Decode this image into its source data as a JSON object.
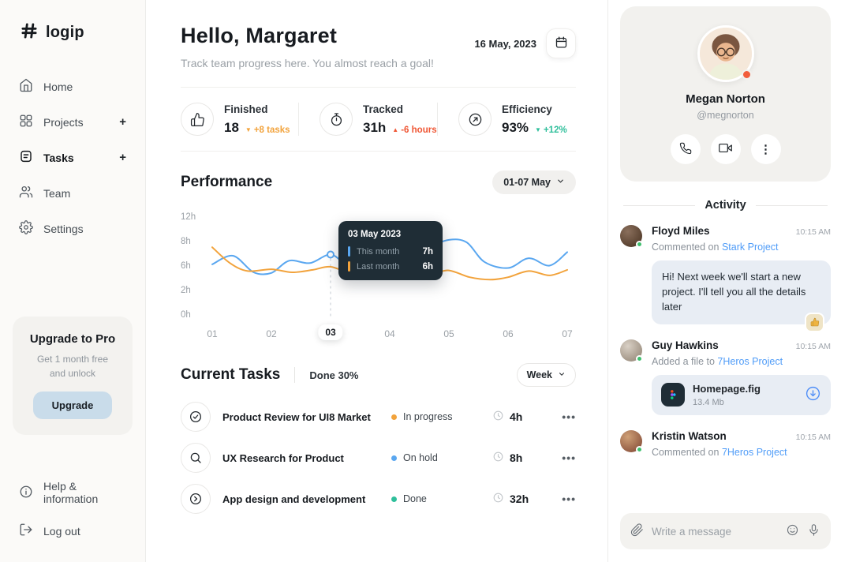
{
  "colors": {
    "accent_orange": "#f2a33c",
    "accent_red": "#ef5533",
    "accent_teal": "#2fbf9b",
    "link_blue": "#4f9cf8",
    "line_blue": "#5aa7f0",
    "tooltip_bg": "#1f2d36"
  },
  "sidebar": {
    "logo": "logip",
    "nav": [
      {
        "label": "Home",
        "icon": "home-icon"
      },
      {
        "label": "Projects",
        "icon": "grid-icon",
        "plus": "+"
      },
      {
        "label": "Tasks",
        "icon": "tasks-icon",
        "plus": "+",
        "active": true
      },
      {
        "label": "Team",
        "icon": "team-icon"
      },
      {
        "label": "Settings",
        "icon": "settings-icon"
      }
    ],
    "upgrade": {
      "title": "Upgrade to Pro",
      "subtitle": "Get 1 month free and unlock",
      "button": "Upgrade"
    },
    "footer": [
      {
        "label": "Help & information",
        "icon": "info-icon"
      },
      {
        "label": "Log out",
        "icon": "logout-icon"
      }
    ]
  },
  "header": {
    "greeting": "Hello, Margaret",
    "subtitle": "Track team progress here. You almost reach a goal!",
    "date": "16 May, 2023"
  },
  "stats": [
    {
      "label": "Finished",
      "value": "18",
      "delta": "+8 tasks",
      "trend": "down",
      "icon": "thumbs-up-icon"
    },
    {
      "label": "Tracked",
      "value": "31h",
      "delta": "-6 hours",
      "trend": "up",
      "icon": "stopwatch-icon"
    },
    {
      "label": "Efficiency",
      "value": "93%",
      "delta": "+12%",
      "trend": "down",
      "icon": "efficiency-icon"
    }
  ],
  "performance": {
    "title": "Performance",
    "range": "01-07 May"
  },
  "chart_data": {
    "type": "line",
    "title": "Performance",
    "x_ticks": [
      "01",
      "02",
      "03",
      "04",
      "05",
      "06",
      "07"
    ],
    "y_ticks": [
      "12h",
      "8h",
      "6h",
      "2h",
      "0h"
    ],
    "y_tick_values": [
      12,
      8,
      6,
      2,
      0
    ],
    "highlight_x_index": 2,
    "legend_position": "tooltip-only",
    "grid": false,
    "series": [
      {
        "name": "This month",
        "color": "#5aa7f0",
        "points": [
          [
            1,
            6.2
          ],
          [
            1.35,
            6.9
          ],
          [
            1.7,
            5.1
          ],
          [
            2,
            5.0
          ],
          [
            2.3,
            6.5
          ],
          [
            2.65,
            6.3
          ],
          [
            3,
            7.0
          ],
          [
            3.3,
            6.1
          ],
          [
            3.7,
            5.9
          ],
          [
            4,
            6.1
          ],
          [
            4.35,
            6.4
          ],
          [
            4.7,
            7.6
          ],
          [
            5,
            8.4
          ],
          [
            5.3,
            8.0
          ],
          [
            5.6,
            6.4
          ],
          [
            6,
            5.8
          ],
          [
            6.35,
            6.7
          ],
          [
            6.7,
            6.1
          ],
          [
            7,
            7.2
          ]
        ]
      },
      {
        "name": "Last month",
        "color": "#f2a33c",
        "points": [
          [
            1,
            7.6
          ],
          [
            1.3,
            6.3
          ],
          [
            1.6,
            5.3
          ],
          [
            2,
            5.6
          ],
          [
            2.35,
            5.1
          ],
          [
            2.7,
            5.5
          ],
          [
            3,
            6.0
          ],
          [
            3.35,
            4.9
          ],
          [
            3.7,
            4.8
          ],
          [
            4,
            5.1
          ],
          [
            4.3,
            5.3
          ],
          [
            4.7,
            4.9
          ],
          [
            5,
            5.4
          ],
          [
            5.35,
            4.3
          ],
          [
            5.7,
            3.9
          ],
          [
            6,
            4.3
          ],
          [
            6.35,
            5.3
          ],
          [
            6.7,
            4.6
          ],
          [
            7,
            5.5
          ]
        ]
      }
    ],
    "marker": [
      3,
      7
    ],
    "tooltip": {
      "title": "03 May 2023",
      "rows": [
        {
          "label": "This month",
          "value": "7h"
        },
        {
          "label": "Last month",
          "value": "6h"
        }
      ]
    }
  },
  "tasks": {
    "title": "Current Tasks",
    "done": "Done 30%",
    "period": "Week",
    "items": [
      {
        "name": "Product Review for UI8 Market",
        "status": "In progress",
        "status_color": "#f2a33c",
        "hours": "4h",
        "icon": "check-circle-icon"
      },
      {
        "name": "UX Research for Product",
        "status": "On hold",
        "status_color": "#5aa7f0",
        "hours": "8h",
        "icon": "search-circle-icon"
      },
      {
        "name": "App design and development",
        "status": "Done",
        "status_color": "#2fbf9b",
        "hours": "32h",
        "icon": "chevron-circle-icon"
      }
    ]
  },
  "profile": {
    "name": "Megan Norton",
    "handle": "@megnorton"
  },
  "activity": {
    "title": "Activity",
    "items": [
      {
        "name": "Floyd Miles",
        "time": "10:15 AM",
        "action": "Commented on",
        "target": "Stark Project",
        "message": "Hi! Next week we'll start a new project. I'll tell you all the details later",
        "reaction": "thumbs-up"
      },
      {
        "name": "Guy Hawkins",
        "time": "10:15 AM",
        "action": "Added a file to",
        "target": "7Heros Project",
        "file": {
          "name": "Homepage.fig",
          "size": "13.4 Mb"
        }
      },
      {
        "name": "Kristin Watson",
        "time": "10:15 AM",
        "action": "Commented on",
        "target": "7Heros Project"
      }
    ],
    "composer": {
      "placeholder": "Write a message"
    }
  }
}
